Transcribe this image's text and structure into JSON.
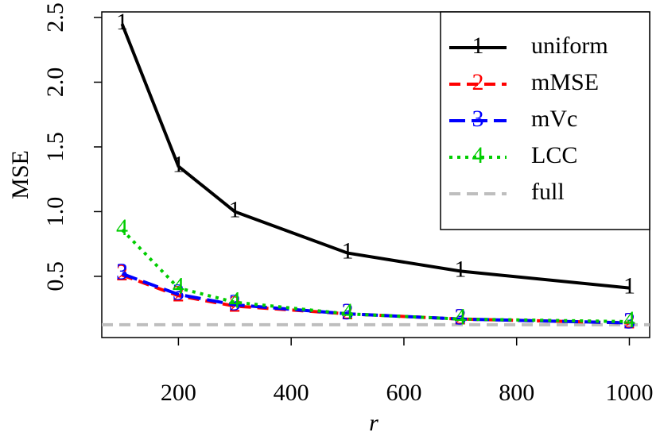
{
  "chart_data": {
    "type": "line",
    "x_label": "r",
    "y_label": "MSE",
    "x": [
      100,
      200,
      300,
      500,
      700,
      1000
    ],
    "series": [
      {
        "name": "uniform",
        "marker": "1",
        "color": "#000000",
        "linestyle": "solid",
        "values": [
          2.45,
          1.35,
          1.0,
          0.68,
          0.54,
          0.41
        ]
      },
      {
        "name": "mMSE",
        "marker": "2",
        "color": "#ff0000",
        "linestyle": "dashed",
        "values": [
          0.51,
          0.35,
          0.27,
          0.21,
          0.17,
          0.14
        ]
      },
      {
        "name": "mVc",
        "marker": "3",
        "color": "#0000ff",
        "linestyle": "longdash",
        "values": [
          0.52,
          0.36,
          0.28,
          0.21,
          0.17,
          0.14
        ]
      },
      {
        "name": "LCC",
        "marker": "4",
        "color": "#00cd00",
        "linestyle": "dotted",
        "values": [
          0.86,
          0.41,
          0.3,
          0.21,
          0.17,
          0.15
        ]
      }
    ],
    "reference_lines": [
      {
        "name": "full",
        "color": "#bebebe",
        "linestyle": "dashed",
        "value": 0.126
      }
    ],
    "xlim": [
      64,
      1036
    ],
    "ylim": [
      0.027,
      2.543
    ],
    "xticks": [
      200,
      400,
      600,
      800,
      1000
    ],
    "yticks": [
      0.5,
      {
        "value": 1,
        "label": "1.0"
      },
      1.5,
      {
        "value": 2,
        "label": "2.0"
      },
      2.5
    ],
    "legend": "top-right"
  }
}
